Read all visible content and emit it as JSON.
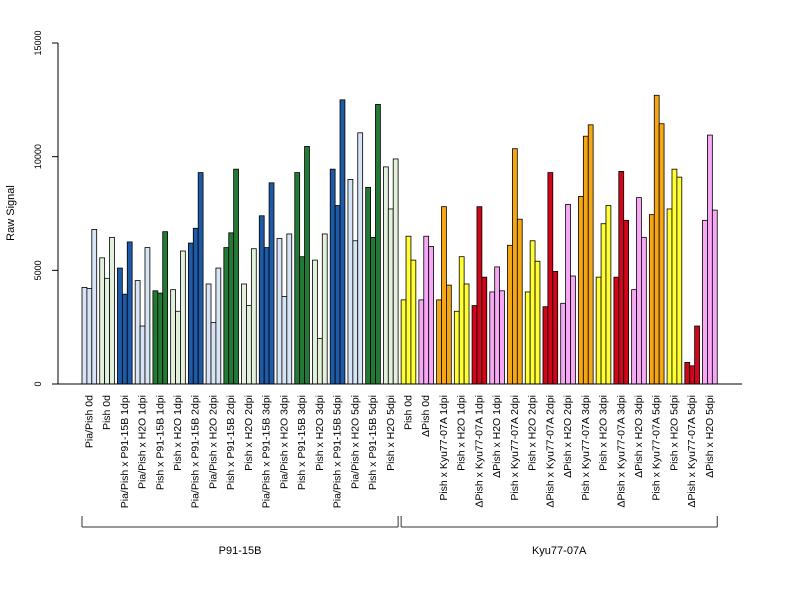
{
  "chart_data": {
    "type": "bar",
    "ylabel": "Raw Signal",
    "ylim": [
      0,
      15000
    ],
    "y_ticks": [
      0,
      5000,
      10000,
      15000
    ],
    "y_tick_labels": [
      "0",
      "5000",
      "10000",
      "15000"
    ],
    "grid": false,
    "legend": "none",
    "categories": [
      "Pia/Pish 0d",
      "Pish 0d",
      "Pia/Pish x P91-15B 1dpi",
      "Pia/Pish x H2O 1dpi",
      "Pish x P91-15B 1dpi",
      "Pish x H2O 1dpi",
      "Pia/Pish x P91-15B 2dpi",
      "Pia/Pish x H2O 2dpi",
      "Pish x P91-15B 2dpi",
      "Pish x H2O 2dpi",
      "Pia/Pish x P91-15B 3dpi",
      "Pia/Pish x H2O 3dpi",
      "Pish x P91-15B 3dpi",
      "Pish x H2O 3dpi",
      "Pia/Pish x P91-15B 5dpi",
      "Pia/Pish x H2O 5dpi",
      "Pish x P91-15B 5dpi",
      "Pish x H2O 5dpi",
      "Pish 0d",
      "ΔPish 0d",
      "Pish x Kyu77-07A 1dpi",
      "Pish x H2O 1dpi",
      "ΔPish x Kyu77-07A 1dpi",
      "ΔPish x H2O 1dpi",
      "Pish x Kyu77-07A 2dpi",
      "Pish x H2O 2dpi",
      "ΔPish x Kyu77-07A 2dpi",
      "ΔPish x H2O 2dpi",
      "Pish x Kyu77-07A 3dpi",
      "Pish x H2O 3dpi",
      "ΔPish x Kyu77-07A 3dpi",
      "ΔPish x H2O 3dpi",
      "Pish x Kyu77-07A 5dpi",
      "Pish x H2O 5dpi",
      "ΔPish x Kyu77-07A 5dpi",
      "ΔPish x H2O 5dpi"
    ],
    "bar_colors": [
      "#d6e4f5",
      "#e3f1dc",
      "#1f5aa6",
      "#d6e4f5",
      "#237a35",
      "#e3f1dc",
      "#1f5aa6",
      "#d6e4f5",
      "#237a35",
      "#e3f1dc",
      "#1f5aa6",
      "#d6e4f5",
      "#237a35",
      "#e3f1dc",
      "#1f5aa6",
      "#d6e4f5",
      "#237a35",
      "#e3f1dc",
      "#ffff33",
      "#f7a8f5",
      "#f5a614",
      "#ffff33",
      "#d0061a",
      "#f7a8f5",
      "#f5a614",
      "#ffff33",
      "#d0061a",
      "#f7a8f5",
      "#f5a614",
      "#ffff33",
      "#d0061a",
      "#f7a8f5",
      "#f5a614",
      "#ffff33",
      "#d0061a",
      "#f7a8f5"
    ],
    "series": [
      {
        "values": [
          4250,
          5550,
          5100,
          4550,
          4100,
          4150,
          6200,
          4400,
          6000,
          4400,
          7400,
          6400,
          9300,
          5450,
          9450,
          9000,
          8650,
          9550,
          3700,
          3700,
          3700,
          3200,
          3450,
          4050,
          6100,
          4050,
          3400,
          3550,
          8250,
          4700,
          4700,
          4150,
          7450,
          7700,
          950,
          7200
        ]
      },
      {
        "values": [
          4200,
          4650,
          3950,
          2550,
          4000,
          3200,
          6850,
          2700,
          6650,
          3450,
          6000,
          3850,
          5600,
          2000,
          7850,
          6300,
          6450,
          7700,
          6500,
          6500,
          7800,
          5600,
          7800,
          5150,
          10350,
          6300,
          9300,
          7900,
          10900,
          7050,
          9350,
          8200,
          12700,
          9450,
          800,
          10950
        ]
      },
      {
        "values": [
          6800,
          6450,
          6250,
          6000,
          6700,
          5850,
          9300,
          5100,
          9450,
          5950,
          8850,
          6600,
          10450,
          6600,
          12500,
          11050,
          12300,
          9900,
          5450,
          6050,
          4350,
          4400,
          4700,
          4100,
          7250,
          5400,
          4950,
          4750,
          11400,
          7850,
          7200,
          6450,
          11450,
          9100,
          2550,
          7650
        ]
      }
    ],
    "group_labels": [
      "P91-15B",
      "Kyu77-07A"
    ],
    "group_spans": [
      [
        0,
        17
      ],
      [
        18,
        35
      ]
    ]
  }
}
